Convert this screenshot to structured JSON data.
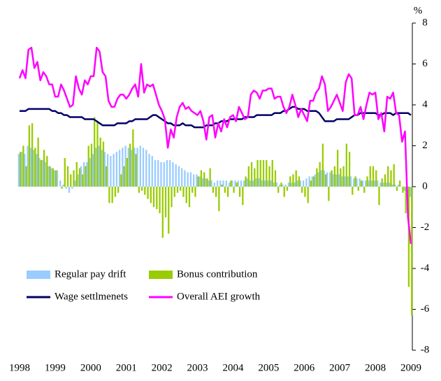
{
  "chart_data": {
    "type": "bar",
    "y_label": "%",
    "ylim": [
      -8,
      8
    ],
    "yticks": [
      -8,
      -6,
      -4,
      -2,
      0,
      2,
      4,
      6,
      8
    ],
    "legend": "lower left",
    "categories": [
      "1998",
      null,
      null,
      null,
      null,
      null,
      null,
      null,
      null,
      null,
      null,
      null,
      "1999",
      null,
      null,
      null,
      null,
      null,
      null,
      null,
      null,
      null,
      null,
      null,
      "2000",
      null,
      null,
      null,
      null,
      null,
      null,
      null,
      null,
      null,
      null,
      null,
      "2001",
      null,
      null,
      null,
      null,
      null,
      null,
      null,
      null,
      null,
      null,
      null,
      "2002",
      null,
      null,
      null,
      null,
      null,
      null,
      null,
      null,
      null,
      null,
      null,
      "2003",
      null,
      null,
      null,
      null,
      null,
      null,
      null,
      null,
      null,
      null,
      null,
      "2004",
      null,
      null,
      null,
      null,
      null,
      null,
      null,
      null,
      null,
      null,
      null,
      "2005",
      null,
      null,
      null,
      null,
      null,
      null,
      null,
      null,
      null,
      null,
      null,
      "2006",
      null,
      null,
      null,
      null,
      null,
      null,
      null,
      null,
      null,
      null,
      null,
      "2007",
      null,
      null,
      null,
      null,
      null,
      null,
      null,
      null,
      null,
      null,
      null,
      "2008",
      null,
      null,
      null,
      null,
      null,
      null,
      null,
      null,
      null,
      null,
      null,
      "2009"
    ],
    "series": [
      {
        "name": "Regular pay drift",
        "type": "bar",
        "color": "#99ccff",
        "values": [
          1.6,
          1.7,
          1.6,
          2.0,
          1.9,
          1.8,
          1.6,
          1.4,
          1.3,
          1.2,
          1.0,
          0.9,
          0.8,
          0.8,
          0.3,
          0.1,
          -0.1,
          -0.3,
          -0.1,
          0.3,
          0.6,
          1.0,
          1.2,
          1.2,
          1.4,
          1.6,
          1.9,
          2.0,
          1.8,
          1.7,
          1.6,
          1.5,
          1.6,
          1.7,
          1.8,
          1.9,
          2.0,
          1.9,
          1.8,
          1.9,
          1.9,
          2.0,
          1.9,
          1.8,
          1.6,
          1.5,
          1.3,
          1.3,
          1.2,
          1.2,
          1.3,
          1.3,
          1.2,
          1.1,
          1.0,
          0.9,
          0.8,
          0.7,
          0.7,
          0.6,
          0.6,
          0.5,
          0.4,
          0.4,
          0.3,
          0.3,
          0.2,
          0.3,
          0.3,
          0.3,
          0.3,
          0.2,
          0.3,
          0.3,
          0.3,
          0.3,
          0.3,
          0.4,
          0.3,
          0.3,
          0.4,
          0.4,
          0.3,
          0.3,
          0.3,
          0.3,
          0.2,
          0.2,
          0.1,
          0.1,
          0.1,
          0.2,
          0.2,
          0.2,
          0.3,
          0.3,
          0.3,
          0.4,
          0.5,
          0.5,
          0.6,
          0.7,
          0.8,
          0.8,
          0.7,
          0.7,
          0.6,
          0.6,
          0.6,
          0.5,
          0.5,
          0.5,
          0.5,
          0.4,
          0.4,
          0.4,
          0.3,
          0.3,
          0.3,
          0.3,
          0.3,
          0.3,
          0.2,
          0.2,
          0.2,
          0.2,
          0.1,
          0.1,
          0.1,
          0.0,
          -0.2,
          -0.4,
          -0.5
        ]
      },
      {
        "name": "Bonus contribution",
        "type": "bar",
        "color": "#99cc00",
        "values": [
          1.7,
          2.0,
          1.0,
          3.0,
          3.1,
          1.9,
          2.4,
          1.3,
          1.8,
          1.5,
          1.0,
          0.9,
          0.8,
          0.0,
          -0.1,
          1.4,
          1.0,
          0.6,
          0.8,
          1.2,
          0.9,
          0.6,
          1.0,
          2.0,
          2.1,
          3.4,
          3.2,
          2.4,
          2.2,
          1.0,
          -0.8,
          -0.8,
          -0.5,
          -0.3,
          0.6,
          1.0,
          1.4,
          2.1,
          2.8,
          1.6,
          -0.3,
          -0.2,
          -0.4,
          -0.6,
          -0.8,
          -1.0,
          -1.1,
          -1.3,
          -2.5,
          -1.5,
          -2.3,
          -1.0,
          -0.5,
          -0.3,
          -0.2,
          -0.5,
          -0.8,
          -1.0,
          -0.3,
          -0.5,
          0.5,
          0.8,
          0.7,
          0.4,
          0.9,
          -0.3,
          -0.5,
          -1.2,
          0.1,
          -0.3,
          -0.5,
          0.3,
          -0.3,
          0.2,
          -0.5,
          -0.9,
          0.5,
          1.0,
          1.2,
          0.9,
          1.3,
          1.3,
          1.3,
          1.3,
          1.0,
          1.3,
          0.8,
          -0.3,
          0.2,
          -0.5,
          -0.2,
          0.5,
          0.6,
          0.8,
          0.5,
          -0.3,
          -0.5,
          -0.8,
          0.3,
          0.5,
          0.9,
          1.2,
          2.1,
          0.6,
          -0.7,
          0.8,
          1.0,
          1.8,
          0.9,
          1.0,
          2.1,
          1.7,
          -0.4,
          0.5,
          -0.2,
          0.3,
          -0.3,
          0.5,
          1.0,
          1.0,
          0.8,
          -0.9,
          0.4,
          0.6,
          1.0,
          0.8,
          1.1,
          -0.2,
          0.3,
          -0.3,
          -1.3,
          -4.9,
          -6.3
        ]
      },
      {
        "name": "Wage settlmenets",
        "type": "line",
        "color": "#000066",
        "values": [
          3.7,
          3.7,
          3.7,
          3.8,
          3.8,
          3.8,
          3.8,
          3.8,
          3.8,
          3.8,
          3.8,
          3.7,
          3.7,
          3.6,
          3.6,
          3.5,
          3.5,
          3.4,
          3.4,
          3.4,
          3.4,
          3.4,
          3.3,
          3.3,
          3.3,
          3.3,
          3.2,
          3.1,
          3.0,
          3.0,
          3.0,
          3.0,
          3.0,
          3.1,
          3.1,
          3.1,
          3.1,
          3.2,
          3.2,
          3.3,
          3.3,
          3.3,
          3.3,
          3.3,
          3.4,
          3.5,
          3.5,
          3.4,
          3.3,
          3.2,
          3.1,
          3.1,
          3.0,
          3.0,
          3.0,
          3.1,
          3.0,
          3.0,
          3.0,
          2.9,
          2.9,
          2.9,
          2.9,
          3.0,
          3.0,
          3.0,
          3.1,
          3.1,
          3.2,
          3.2,
          3.2,
          3.3,
          3.3,
          3.3,
          3.3,
          3.3,
          3.4,
          3.4,
          3.4,
          3.4,
          3.5,
          3.5,
          3.5,
          3.5,
          3.5,
          3.5,
          3.6,
          3.6,
          3.6,
          3.7,
          3.7,
          3.8,
          3.9,
          3.9,
          3.8,
          3.8,
          3.8,
          3.7,
          3.7,
          3.7,
          3.7,
          3.6,
          3.4,
          3.2,
          3.2,
          3.2,
          3.2,
          3.3,
          3.3,
          3.3,
          3.3,
          3.3,
          3.4,
          3.5,
          3.5,
          3.6,
          3.6,
          3.6,
          3.6,
          3.6,
          3.6,
          3.5,
          3.5,
          3.6,
          3.6,
          3.6,
          3.5,
          3.6,
          3.6,
          3.6,
          3.6,
          3.6,
          3.5
        ]
      },
      {
        "name": "Overall AEI growth",
        "type": "line",
        "color": "#ff00ff",
        "values": [
          5.3,
          5.7,
          5.3,
          6.7,
          6.8,
          5.8,
          6.1,
          5.2,
          5.6,
          5.4,
          5.0,
          5.0,
          4.4,
          4.4,
          5.0,
          4.7,
          4.3,
          3.9,
          4.0,
          5.4,
          4.8,
          4.5,
          5.2,
          5.0,
          5.4,
          5.4,
          6.8,
          6.6,
          5.6,
          5.4,
          4.2,
          3.9,
          3.9,
          4.3,
          4.5,
          4.5,
          4.3,
          4.5,
          4.8,
          5.0,
          4.4,
          6.0,
          4.6,
          5.0,
          4.9,
          5.0,
          4.5,
          4.0,
          3.7,
          3.3,
          1.9,
          2.8,
          2.4,
          3.4,
          3.9,
          4.1,
          3.8,
          3.9,
          3.7,
          3.6,
          3.5,
          3.7,
          3.2,
          2.3,
          3.4,
          3.5,
          2.4,
          3.1,
          2.7,
          3.3,
          2.9,
          3.4,
          3.5,
          3.2,
          3.9,
          3.6,
          3.3,
          3.4,
          4.5,
          4.7,
          4.6,
          4.3,
          4.7,
          4.7,
          4.8,
          4.8,
          4.3,
          4.4,
          4.4,
          3.9,
          3.6,
          3.9,
          4.5,
          4.0,
          3.4,
          3.8,
          3.5,
          3.2,
          4.2,
          4.2,
          4.6,
          4.8,
          5.4,
          5.0,
          3.7,
          3.9,
          4.2,
          4.5,
          4.1,
          3.7,
          5.1,
          5.5,
          5.3,
          3.5,
          3.5,
          3.9,
          3.3,
          4.0,
          4.6,
          4.5,
          4.6,
          3.3,
          3.6,
          2.7,
          4.4,
          4.3,
          4.6,
          3.6,
          3.5,
          2.2,
          2.7,
          -1.5,
          -2.8
        ]
      }
    ]
  }
}
